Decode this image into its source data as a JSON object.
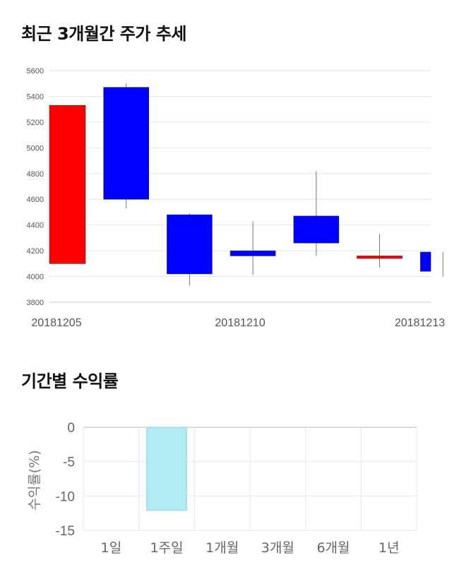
{
  "sections": {
    "price_trend_title": "최근 3개월간 주가 추세",
    "returns_title": "기간별 수익률"
  },
  "chart_data": [
    {
      "type": "candlestick",
      "title": "최근 3개월간 주가 추세",
      "ylim": [
        3800,
        5600
      ],
      "yticks": [
        3800,
        4000,
        4200,
        4400,
        4600,
        4800,
        5000,
        5200,
        5400,
        5600
      ],
      "x_tick_labels": [
        "20181205",
        "20181210",
        "20181213"
      ],
      "up_color": "#ff0000",
      "down_color": "#0000ff",
      "candles": [
        {
          "open": 4100,
          "close": 5330,
          "high": 5330,
          "low": 4100
        },
        {
          "open": 5470,
          "close": 4600,
          "high": 5500,
          "low": 4530
        },
        {
          "open": 4480,
          "close": 4020,
          "high": 4490,
          "low": 3930
        },
        {
          "open": 4200,
          "close": 4160,
          "high": 4430,
          "low": 4010
        },
        {
          "open": 4470,
          "close": 4260,
          "high": 4820,
          "low": 4160
        },
        {
          "open": 4140,
          "close": 4160,
          "high": 4330,
          "low": 4070
        },
        {
          "open": 4190,
          "close": 4040,
          "high": 4190,
          "low": 4000
        }
      ]
    },
    {
      "type": "bar",
      "title": "기간별 수익률",
      "ylabel": "수익률(%)",
      "categories": [
        "1일",
        "1주일",
        "1개월",
        "3개월",
        "6개월",
        "1년"
      ],
      "values": [
        null,
        -12.1,
        null,
        null,
        null,
        null
      ],
      "ylim": [
        -15,
        0
      ],
      "yticks": [
        0,
        -5,
        -10,
        -15
      ],
      "bar_color": "#b2ebf2"
    }
  ]
}
